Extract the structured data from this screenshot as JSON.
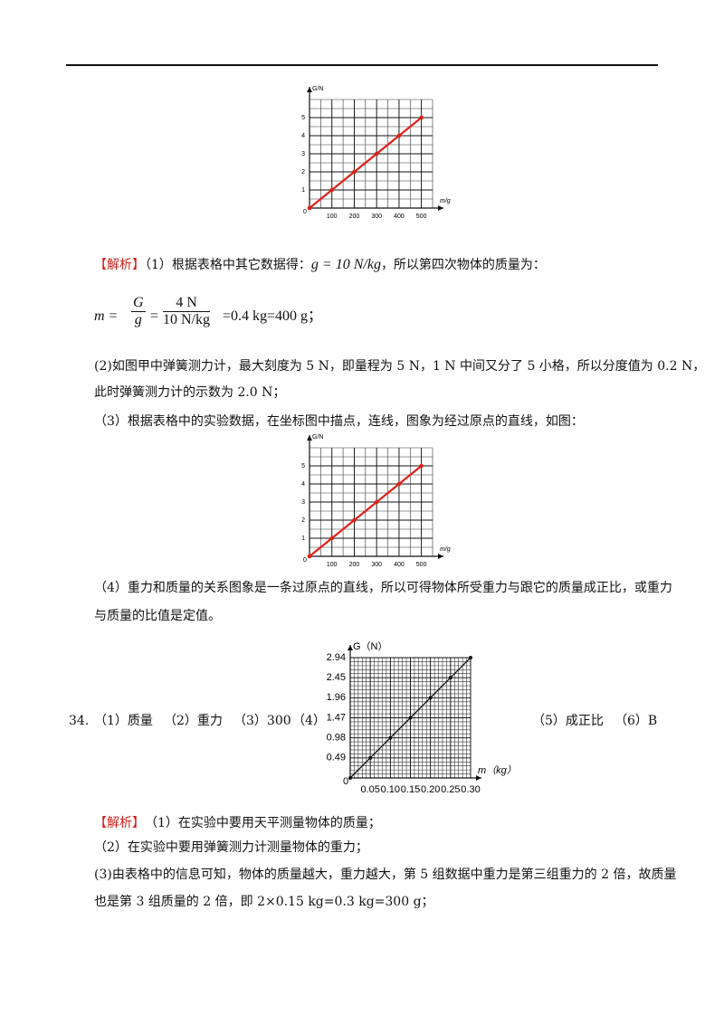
{
  "chart_data": [
    {
      "type": "line",
      "x_label": "m/g",
      "y_label": "G/N",
      "x": [
        0,
        100,
        200,
        300,
        400,
        500
      ],
      "values": [
        0,
        1,
        2,
        3,
        4,
        5
      ],
      "color": "#e0201a",
      "xlim": [
        0,
        550
      ],
      "ylim": [
        0,
        6
      ],
      "xticks": [
        0,
        100,
        200,
        300,
        400,
        500
      ],
      "yticks": [
        1,
        2,
        3,
        4,
        5
      ],
      "grid": true
    },
    {
      "type": "line",
      "x_label": "m/g",
      "y_label": "G/N",
      "x": [
        0,
        100,
        200,
        300,
        400,
        500
      ],
      "values": [
        0,
        1,
        2,
        3,
        4,
        5
      ],
      "color": "#e0201a",
      "xlim": [
        0,
        550
      ],
      "ylim": [
        0,
        6
      ],
      "xticks": [
        0,
        100,
        200,
        300,
        400,
        500
      ],
      "yticks": [
        1,
        2,
        3,
        4,
        5
      ],
      "grid": true
    },
    {
      "type": "line",
      "x_label": "m（kg）",
      "y_label": "G（N）",
      "x": [
        0,
        0.05,
        0.1,
        0.15,
        0.2,
        0.25,
        0.3
      ],
      "values": [
        0,
        0.49,
        0.98,
        1.47,
        1.96,
        2.45,
        2.94
      ],
      "color": "#111111",
      "xlim": [
        0,
        0.3
      ],
      "ylim": [
        0,
        2.94
      ],
      "xticks": [
        0,
        0.05,
        {
          "value": 0.1,
          "label": "0.10"
        },
        0.15,
        {
          "value": 0.2,
          "label": "0.20"
        },
        0.25,
        {
          "value": 0.3,
          "label": "0.30"
        }
      ],
      "yticks": [
        0.49,
        0.98,
        1.47,
        1.96,
        2.45,
        2.94
      ],
      "grid": true
    }
  ],
  "analysis1": {
    "label": "【解析】",
    "p1_a": "（1）根据表格中其它数据得：",
    "p1_formula": "g = 10 N/kg",
    "p1_b": "，所以第四次物体的质量为：",
    "formula": {
      "lhs": "m =",
      "num1": "G",
      "den1": "g",
      "eq": "=",
      "num2": "4 N",
      "den2": "10 N/kg",
      "rest": "=0.4 kg=400 g；"
    },
    "p2": [
      "(2)如图甲中弹簧测力计，最大刻度为 5 N，即量程为 5 N，1 N 中间又分了 5 小格，所以分度值为 0.2 N，",
      "此时弹簧测力计的示数为 2.0 N；"
    ],
    "p3": "（3）根据表格中的实验数据，在坐标图中描点，连线，图象为经过原点的直线，如图：",
    "p4": [
      "（4）重力和质量的关系图象是一条过原点的直线，所以可得物体所受重力与跟它的质量成正比，或重力",
      "与质量的比值是定值。"
    ]
  },
  "q34": {
    "number": "34.",
    "a1": "（1）质量",
    "a2": "（2）重力",
    "a3": "（3）300",
    "a4": "（4）",
    "a5": "（5）成正比",
    "a6": "（6）B"
  },
  "analysis2": {
    "label": "【解析】",
    "lines": [
      "（1）在实验中要用天平测量物体的质量；",
      "（2）在实验中要用弹簧测力计测量物体的重力；",
      "(3)由表格中的信息可知，物体的质量越大，重力越大，第 5 组数据中重力是第三组重力的 2 倍，故质量",
      "也是第 3 组质量的 2 倍，即 2×0.15 kg=0.3 kg=300 g；"
    ]
  }
}
